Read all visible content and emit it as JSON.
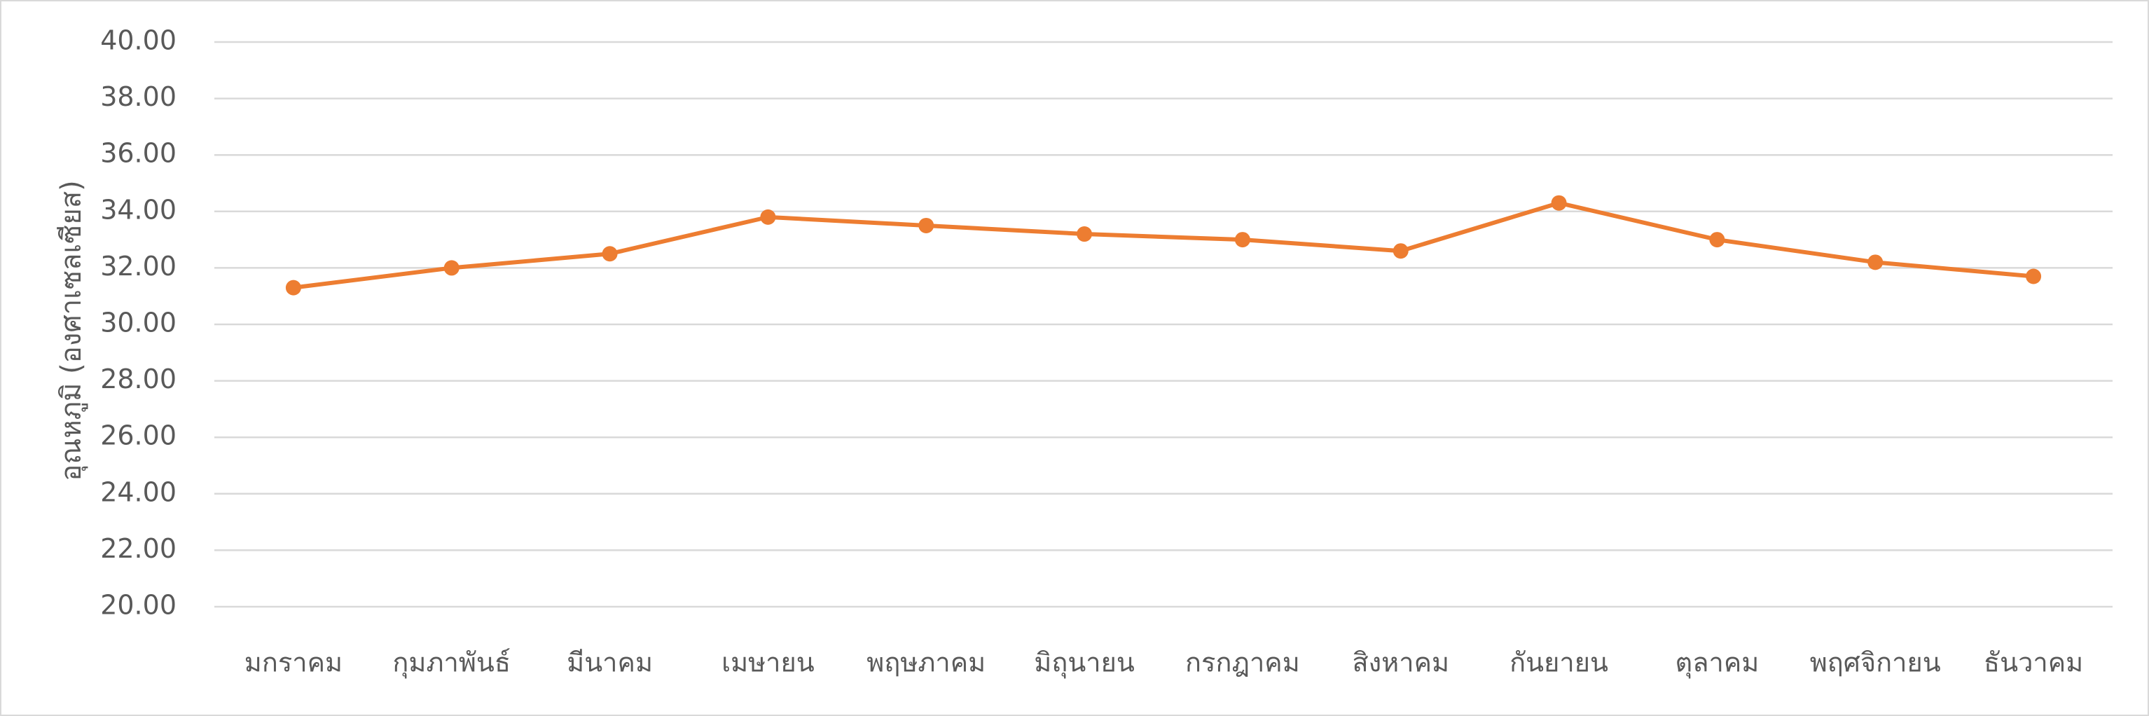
{
  "chart_data": {
    "type": "line",
    "title": "",
    "xlabel": "",
    "ylabel": "อุณหภูมิ (องศาเซลเซียส)",
    "ylim": [
      20,
      40
    ],
    "ystep": 2,
    "ytick_labels": [
      "20.00",
      "22.00",
      "24.00",
      "26.00",
      "28.00",
      "30.00",
      "32.00",
      "34.00",
      "36.00",
      "38.00",
      "40.00"
    ],
    "grid": true,
    "legend": "none",
    "categories": [
      "มกราคม",
      "กุมภาพันธ์",
      "มีนาคม",
      "เมษายน",
      "พฤษภาคม",
      "มิถุนายน",
      "กรกฎาคม",
      "สิงหาคม",
      "กันยายน",
      "ตุลาคม",
      "พฤศจิกายน",
      "ธันวาคม"
    ],
    "series": [
      {
        "color": "#ED7D31",
        "values": [
          31.3,
          32.0,
          32.5,
          33.8,
          33.5,
          33.2,
          33.0,
          32.6,
          34.3,
          33.0,
          32.2,
          31.7
        ]
      }
    ]
  }
}
